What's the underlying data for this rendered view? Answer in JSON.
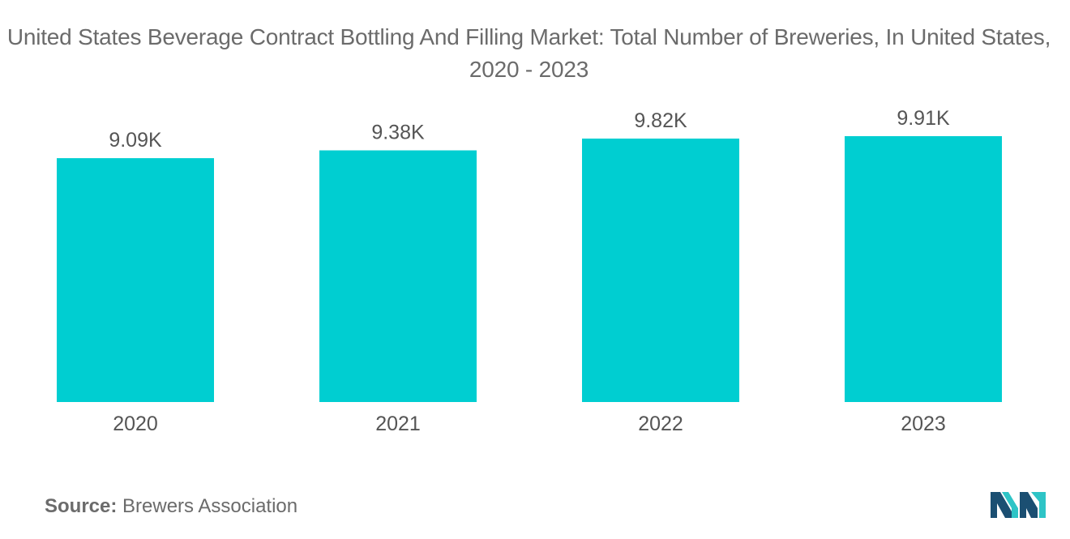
{
  "title": "United States Beverage Contract Bottling And Filling Market: Total Number of Breweries, In United States, 2020 - 2023",
  "source": {
    "label": "Source:",
    "text": "Brewers Association"
  },
  "colors": {
    "bar": "#00CED1",
    "text": "#555555",
    "logo_dark": "#1B4F72",
    "logo_light": "#2EC4C6"
  },
  "logo_icon": "mordor-intelligence-logo",
  "chart_data": {
    "type": "bar",
    "title": "United States Beverage Contract Bottling And Filling Market: Total Number of Breweries, In United States, 2020 - 2023",
    "xlabel": "",
    "ylabel": "",
    "categories": [
      "2020",
      "2021",
      "2022",
      "2023"
    ],
    "values": [
      9090,
      9380,
      9820,
      9910
    ],
    "data_labels": [
      "9.09K",
      "9.38K",
      "9.82K",
      "9.91K"
    ],
    "ylim": [
      0,
      10000
    ],
    "grid": false,
    "legend": "none"
  }
}
